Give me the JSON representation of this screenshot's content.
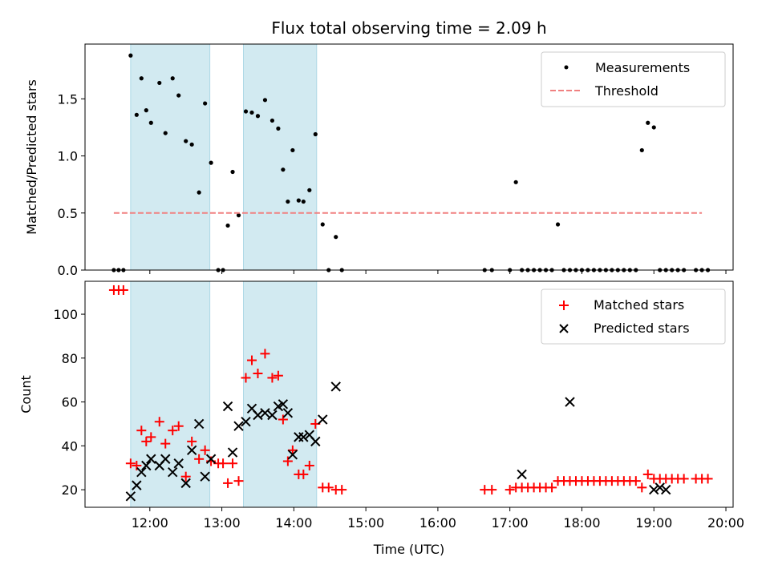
{
  "chart_data": [
    {
      "type": "scatter",
      "title": "Flux total observing time = 2.09 h",
      "xlabel": "",
      "ylabel": "Matched/Predicted stars",
      "xlim": [
        "11:06",
        "20:06"
      ],
      "ylim": [
        0,
        1.98
      ],
      "yticks": [
        0.0,
        0.5,
        1.0,
        1.5
      ],
      "ytick_labels": [
        "0.0",
        "0.5",
        "1.0",
        "1.5"
      ],
      "xticks": [
        "12:00",
        "13:00",
        "14:00",
        "15:00",
        "16:00",
        "17:00",
        "18:00",
        "19:00",
        "20:00"
      ],
      "shaded_intervals": [
        [
          "11:44",
          "12:50"
        ],
        [
          "13:18",
          "14:19"
        ]
      ],
      "shade_color": "#add8e6",
      "legend_position": "upper right",
      "series": [
        {
          "name": "Measurements",
          "marker": "dot",
          "color": "#000000",
          "x": [
            "11:30",
            "11:34",
            "11:38",
            "11:44",
            "11:49",
            "11:53",
            "11:57",
            "12:01",
            "12:08",
            "12:13",
            "12:19",
            "12:24",
            "12:30",
            "12:35",
            "12:41",
            "12:46",
            "12:51",
            "12:57",
            "13:01",
            "13:05",
            "13:09",
            "13:14",
            "13:20",
            "13:25",
            "13:30",
            "13:36",
            "13:42",
            "13:47",
            "13:51",
            "13:55",
            "13:59",
            "14:04",
            "14:08",
            "14:13",
            "14:18",
            "14:24",
            "14:29",
            "14:35",
            "14:40",
            "16:39",
            "16:45",
            "17:00",
            "17:05",
            "17:10",
            "17:15",
            "17:20",
            "17:25",
            "17:30",
            "17:35",
            "17:40",
            "17:45",
            "17:50",
            "17:55",
            "18:00",
            "18:05",
            "18:10",
            "18:15",
            "18:20",
            "18:25",
            "18:30",
            "18:35",
            "18:40",
            "18:45",
            "18:50",
            "18:55",
            "19:00",
            "19:05",
            "19:10",
            "19:15",
            "19:20",
            "19:25",
            "19:35",
            "19:40",
            "19:45"
          ],
          "y": [
            0,
            0,
            0,
            1.88,
            1.36,
            1.68,
            1.4,
            1.29,
            1.64,
            1.2,
            1.68,
            1.53,
            1.13,
            1.1,
            0.68,
            1.46,
            0.94,
            0,
            0,
            0.39,
            0.86,
            0.48,
            1.39,
            1.38,
            1.35,
            1.49,
            1.31,
            1.24,
            0.88,
            0.6,
            1.05,
            0.61,
            0.6,
            0.7,
            1.19,
            0.4,
            0,
            0.29,
            0,
            0,
            0,
            0,
            0.77,
            0,
            0,
            0,
            0,
            0,
            0,
            0.4,
            0,
            0,
            0,
            0,
            0,
            0,
            0,
            0,
            0,
            0,
            0,
            0,
            0,
            1.05,
            1.29,
            1.25,
            0,
            0,
            0,
            0,
            0,
            0,
            0,
            0
          ]
        },
        {
          "name": "Threshold",
          "marker": "dashed-line",
          "color": "#f08080",
          "x": [
            "11:30",
            "19:40"
          ],
          "y": [
            0.5,
            0.5
          ]
        }
      ]
    },
    {
      "type": "scatter",
      "title": "",
      "xlabel": "Time (UTC)",
      "ylabel": "Count",
      "xlim": [
        "11:06",
        "20:06"
      ],
      "ylim": [
        12,
        115
      ],
      "yticks": [
        20,
        40,
        60,
        80,
        100
      ],
      "ytick_labels": [
        "20",
        "40",
        "60",
        "80",
        "100"
      ],
      "xticks": [
        "12:00",
        "13:00",
        "14:00",
        "15:00",
        "16:00",
        "17:00",
        "18:00",
        "19:00",
        "20:00"
      ],
      "xtick_labels": [
        "12:00",
        "13:00",
        "14:00",
        "15:00",
        "16:00",
        "17:00",
        "18:00",
        "19:00",
        "20:00"
      ],
      "shaded_intervals": [
        [
          "11:44",
          "12:50"
        ],
        [
          "13:18",
          "14:19"
        ]
      ],
      "shade_color": "#add8e6",
      "legend_position": "upper right",
      "series": [
        {
          "name": "Matched stars",
          "marker": "plus",
          "color": "#ff0000",
          "x": [
            "11:30",
            "11:34",
            "11:38",
            "11:44",
            "11:49",
            "11:53",
            "11:57",
            "12:01",
            "12:08",
            "12:13",
            "12:19",
            "12:24",
            "12:30",
            "12:35",
            "12:41",
            "12:46",
            "12:51",
            "12:57",
            "13:01",
            "13:05",
            "13:09",
            "13:14",
            "13:20",
            "13:25",
            "13:30",
            "13:36",
            "13:42",
            "13:47",
            "13:51",
            "13:55",
            "13:59",
            "14:04",
            "14:08",
            "14:13",
            "14:18",
            "14:24",
            "14:29",
            "14:35",
            "14:40",
            "16:39",
            "16:45",
            "17:00",
            "17:05",
            "17:10",
            "17:15",
            "17:20",
            "17:25",
            "17:30",
            "17:35",
            "17:40",
            "17:45",
            "17:50",
            "17:55",
            "18:00",
            "18:05",
            "18:10",
            "18:15",
            "18:20",
            "18:25",
            "18:30",
            "18:35",
            "18:40",
            "18:45",
            "18:50",
            "18:55",
            "19:00",
            "19:05",
            "19:10",
            "19:15",
            "19:20",
            "19:25",
            "19:35",
            "19:40",
            "19:45"
          ],
          "y": [
            111,
            111,
            111,
            32,
            31,
            47,
            42,
            44,
            51,
            41,
            47,
            49,
            26,
            42,
            34,
            38,
            33,
            32,
            32,
            23,
            32,
            24,
            71,
            79,
            73,
            82,
            71,
            72,
            52,
            33,
            38,
            27,
            27,
            31,
            50,
            21,
            21,
            20,
            20,
            20,
            20,
            20,
            21,
            21,
            21,
            21,
            21,
            21,
            21,
            24,
            24,
            24,
            24,
            24,
            24,
            24,
            24,
            24,
            24,
            24,
            24,
            24,
            24,
            21,
            27,
            25,
            25,
            25,
            25,
            25,
            25,
            25,
            25,
            25
          ]
        },
        {
          "name": "Predicted stars",
          "marker": "x",
          "color": "#000000",
          "x": [
            "11:44",
            "11:49",
            "11:53",
            "11:57",
            "12:01",
            "12:08",
            "12:13",
            "12:19",
            "12:24",
            "12:30",
            "12:35",
            "12:41",
            "12:46",
            "12:51",
            "13:05",
            "13:09",
            "13:14",
            "13:20",
            "13:25",
            "13:30",
            "13:36",
            "13:42",
            "13:47",
            "13:51",
            "13:55",
            "13:59",
            "14:04",
            "14:08",
            "14:13",
            "14:18",
            "14:24",
            "14:35",
            "17:10",
            "17:50",
            "19:00",
            "19:05",
            "19:10"
          ],
          "y": [
            17,
            22,
            28,
            31,
            34,
            31,
            34,
            28,
            32,
            23,
            38,
            50,
            26,
            34,
            58,
            37,
            49,
            51,
            57,
            54,
            55,
            54,
            58,
            59,
            55,
            36,
            44,
            44,
            45,
            42,
            52,
            67,
            27,
            60,
            20,
            21,
            20
          ]
        }
      ]
    }
  ]
}
